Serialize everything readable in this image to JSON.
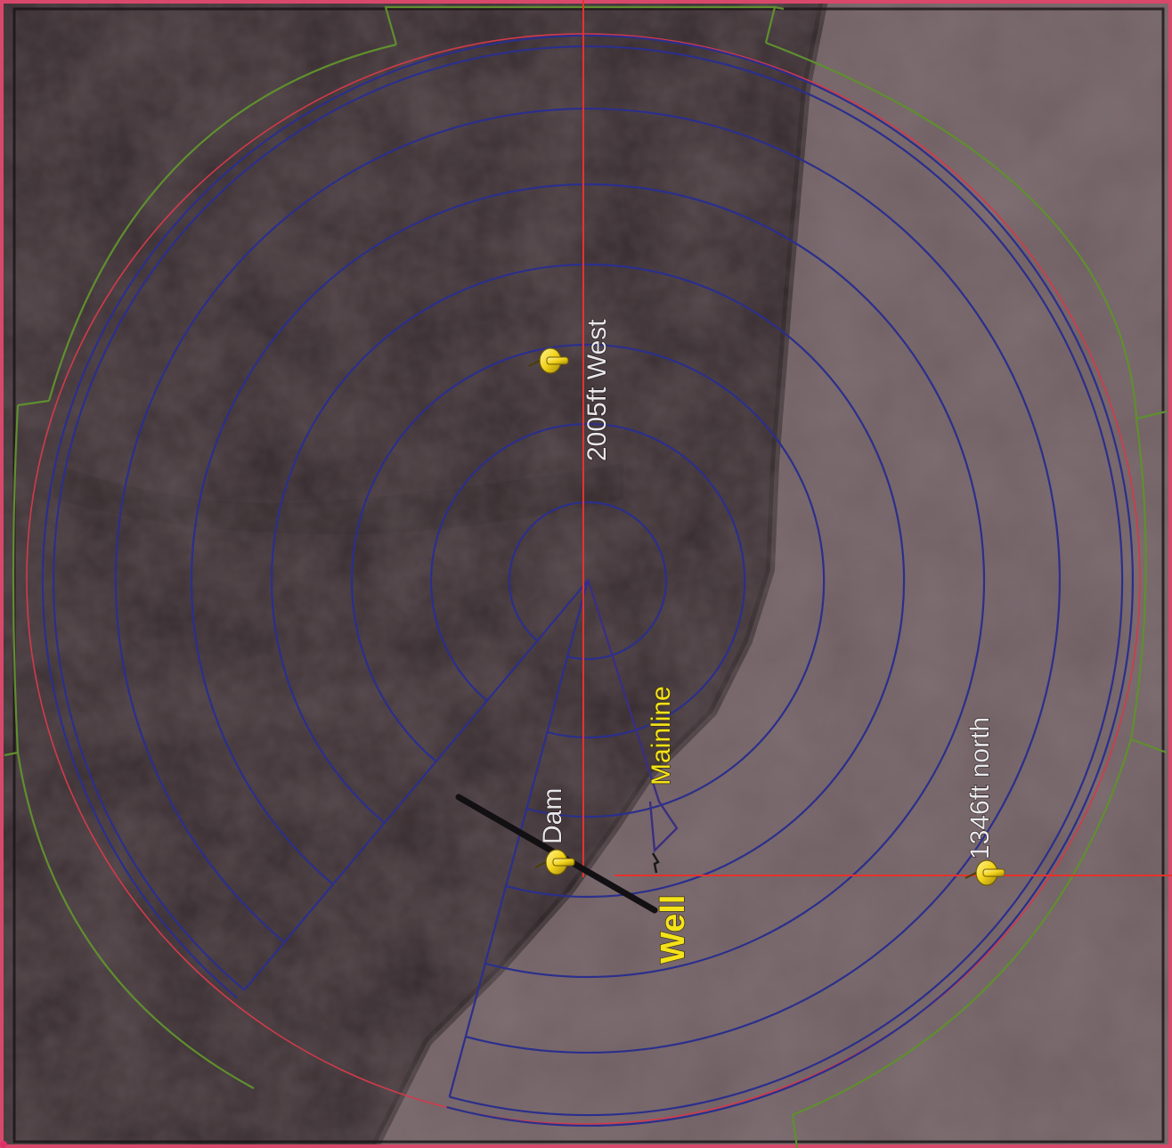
{
  "map": {
    "view": "satellite",
    "colors": {
      "dark_field": "#2f2427",
      "light_field": "#6e5d60",
      "frame": "#d8486a",
      "reference_lines": "#e5322d",
      "pivot_rings": "#2b2f8c",
      "outer_boundary": "#5f8f2e",
      "buffer_ring": "#d23a4a",
      "mainline": "#3a2f80",
      "pushpin": "#f2d21b",
      "label_text": "#e9e6ea",
      "highlight_label_text": "#f4e21a"
    },
    "pins": [
      {
        "id": "pin-2005ft-west",
        "label": "2005ft West",
        "icon": "pushpin-icon"
      },
      {
        "id": "pin-1346ft-north",
        "label": "1346ft north",
        "icon": "pushpin-icon"
      },
      {
        "id": "pin-dam",
        "label": "Dam",
        "icon": "pushpin-icon"
      }
    ],
    "features": {
      "mainline_label": "Mainline",
      "well_label": "Well"
    }
  }
}
